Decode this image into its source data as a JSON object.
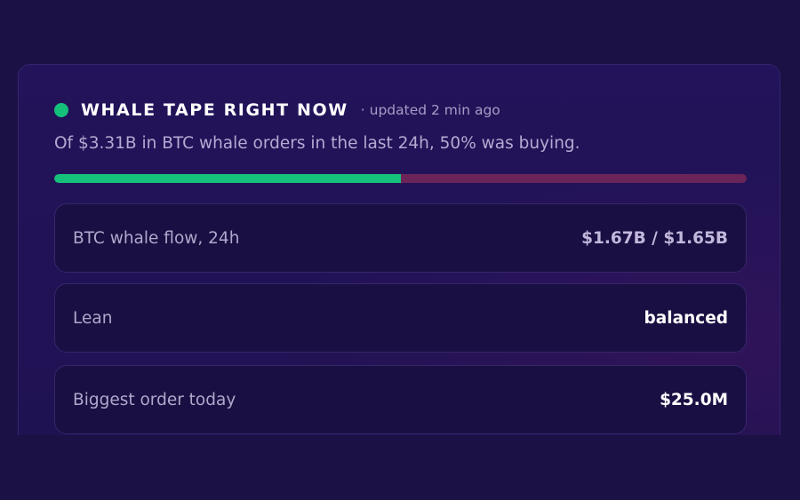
{
  "card": {
    "title": "WHALE TAPE RIGHT NOW",
    "updated": "· updated 2 min ago",
    "summary": "Of $3.31B in BTC whale orders in the last 24h, 50% was buying.",
    "colors": {
      "buy": "#14c07a",
      "sell": "#6a2458"
    },
    "buy_share_percent": 50,
    "stats": [
      {
        "label": "BTC whale flow, 24h",
        "value": "$1.67B / $1.65B"
      },
      {
        "label": "Lean",
        "value": "balanced"
      },
      {
        "label": "Biggest order today",
        "value": "$25.0M"
      }
    ]
  }
}
